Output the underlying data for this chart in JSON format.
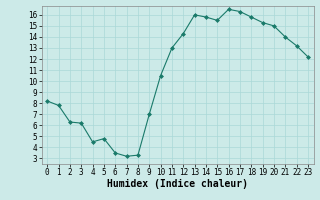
{
  "x": [
    0,
    1,
    2,
    3,
    4,
    5,
    6,
    7,
    8,
    9,
    10,
    11,
    12,
    13,
    14,
    15,
    16,
    17,
    18,
    19,
    20,
    21,
    22,
    23
  ],
  "y": [
    8.2,
    7.8,
    6.3,
    6.2,
    4.5,
    4.8,
    3.5,
    3.2,
    3.3,
    7.0,
    10.5,
    13.0,
    14.3,
    16.0,
    15.8,
    15.5,
    16.5,
    16.3,
    15.8,
    15.3,
    15.0,
    14.0,
    13.2,
    12.2
  ],
  "line_color": "#1a7a6a",
  "marker": "D",
  "marker_size": 2,
  "bg_color": "#cceae8",
  "grid_color": "#aad8d8",
  "xlabel": "Humidex (Indice chaleur)",
  "xlim": [
    -0.5,
    23.5
  ],
  "ylim": [
    2.5,
    16.8
  ],
  "yticks": [
    3,
    4,
    5,
    6,
    7,
    8,
    9,
    10,
    11,
    12,
    13,
    14,
    15,
    16
  ],
  "xticks": [
    0,
    1,
    2,
    3,
    4,
    5,
    6,
    7,
    8,
    9,
    10,
    11,
    12,
    13,
    14,
    15,
    16,
    17,
    18,
    19,
    20,
    21,
    22,
    23
  ],
  "xlabel_fontsize": 7,
  "tick_fontsize": 5.5
}
